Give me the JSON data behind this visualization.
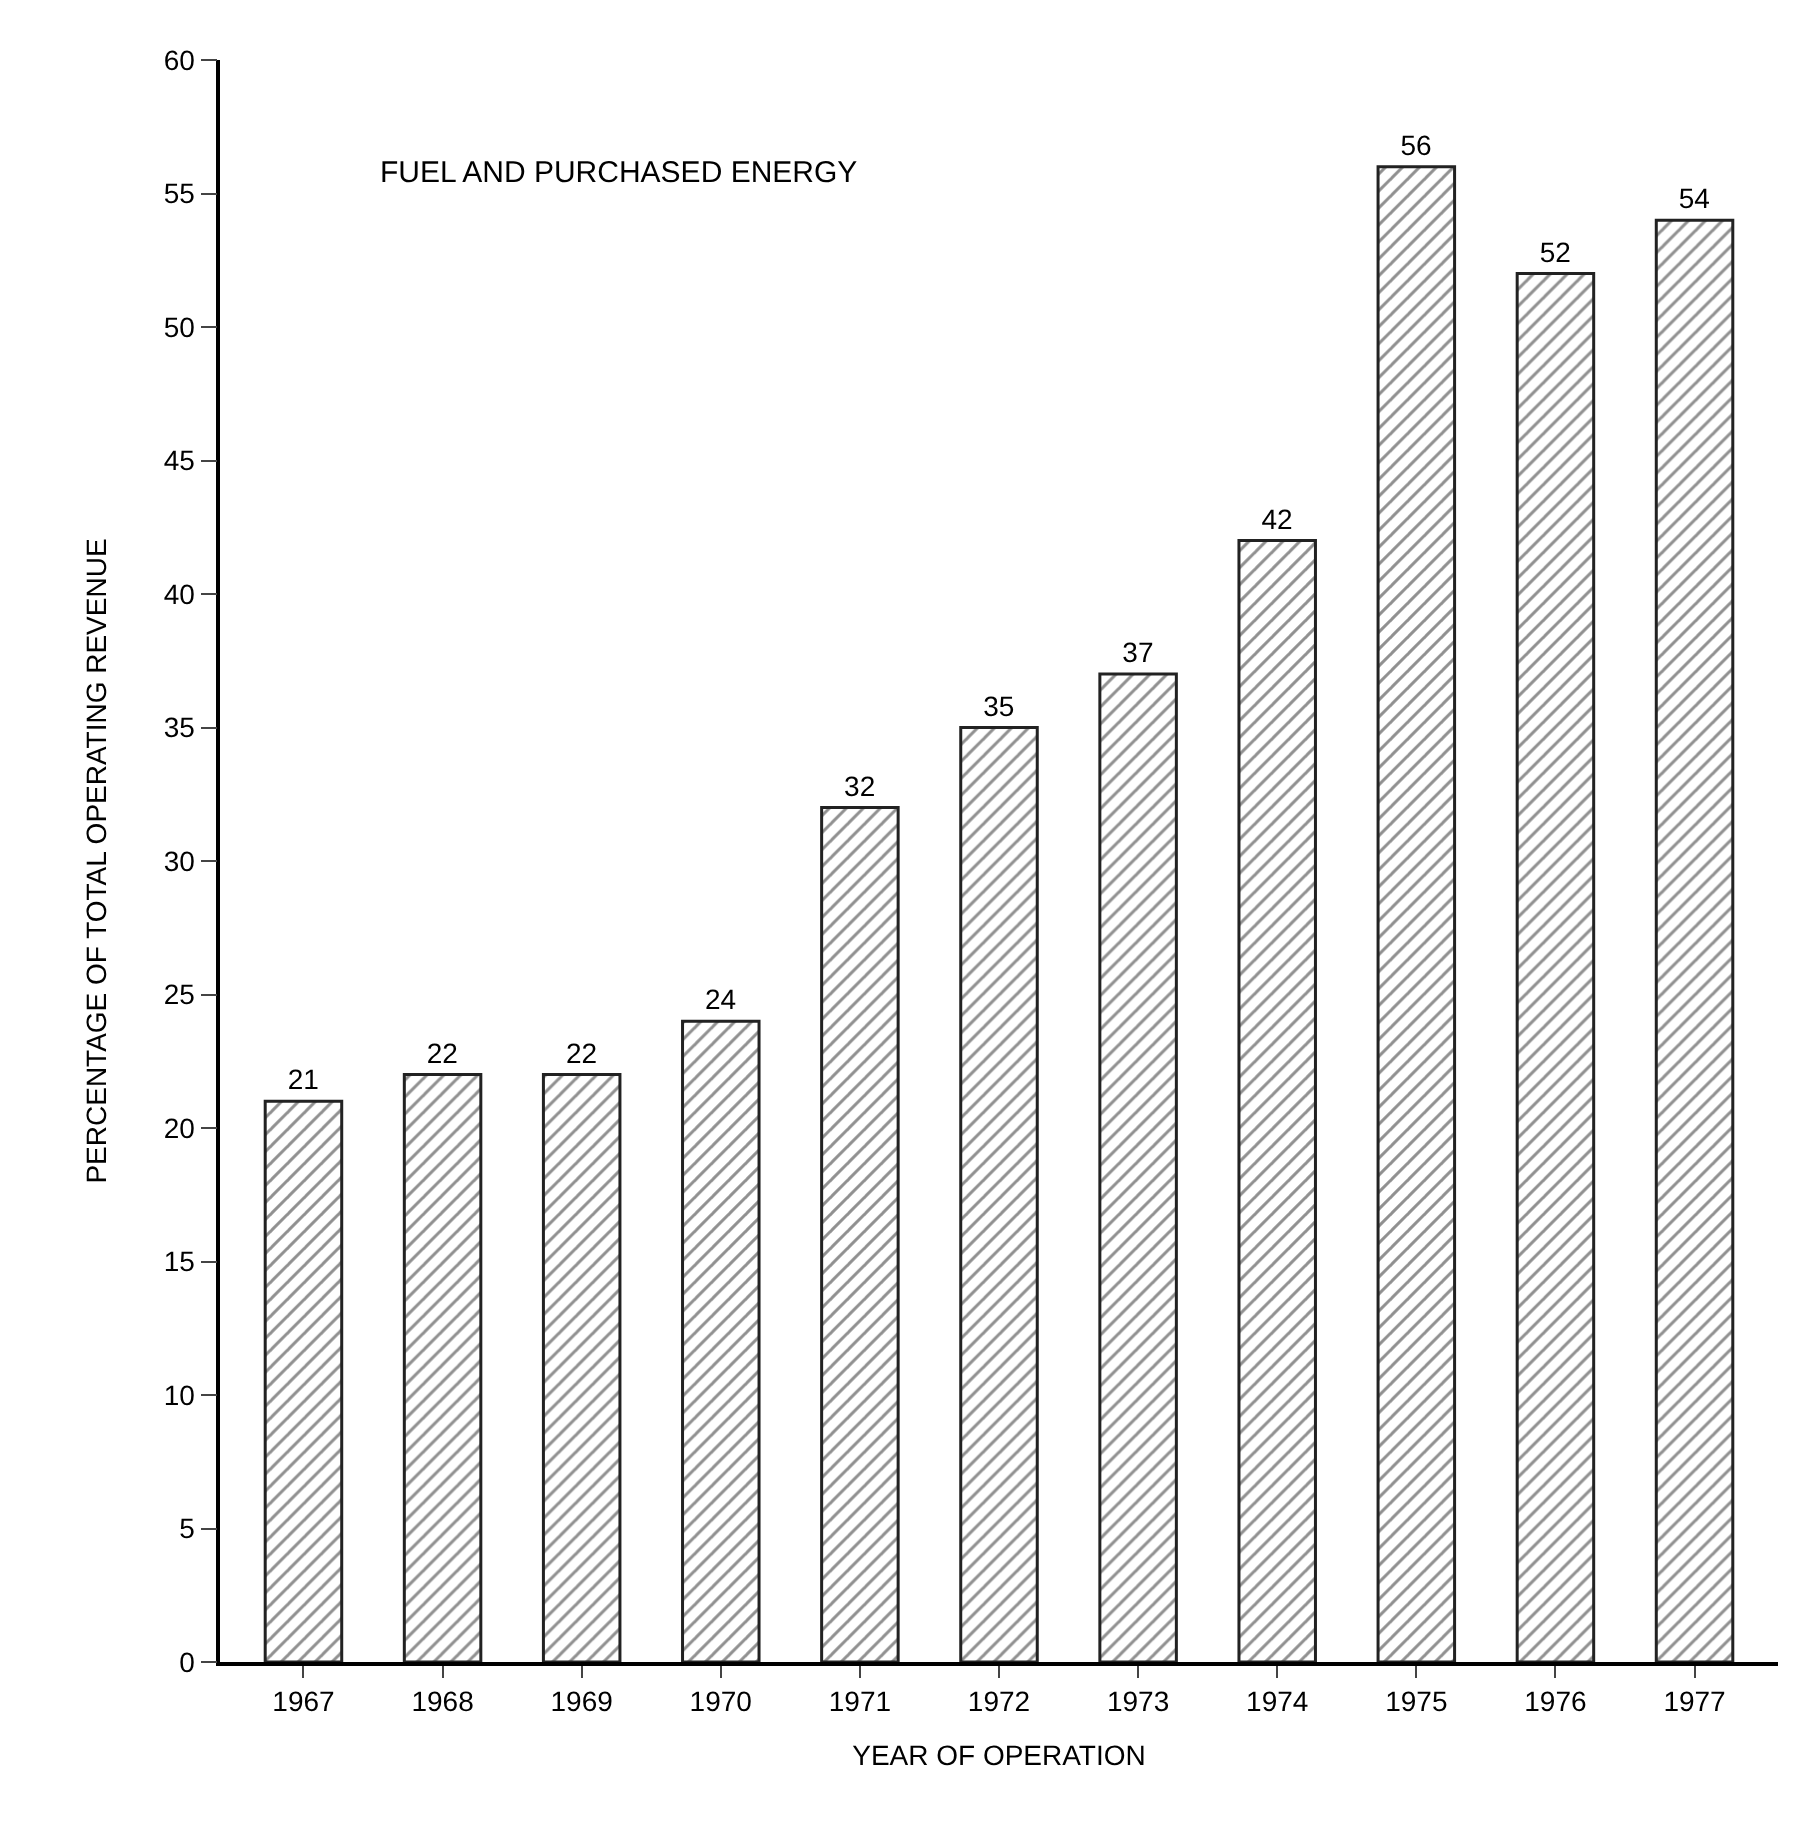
{
  "chart_data": {
    "type": "bar",
    "title": "FUEL AND PURCHASED ENERGY",
    "xlabel": "YEAR OF OPERATION",
    "ylabel": "PERCENTAGE OF TOTAL OPERATING REVENUE",
    "categories": [
      "1967",
      "1968",
      "1969",
      "1970",
      "1971",
      "1972",
      "1973",
      "1974",
      "1975",
      "1976",
      "1977"
    ],
    "values": [
      21,
      22,
      22,
      24,
      32,
      35,
      37,
      42,
      56,
      52,
      54
    ],
    "color": "#222222",
    "ylim": [
      0,
      60
    ],
    "yticks": [
      0,
      5,
      10,
      15,
      20,
      25,
      30,
      35,
      40,
      45,
      50,
      55,
      60
    ],
    "data_labels": true,
    "grid": false
  }
}
